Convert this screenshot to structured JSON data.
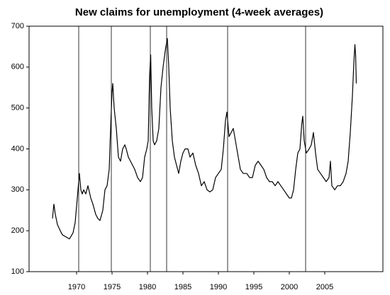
{
  "chart_data": {
    "type": "line",
    "title": "New claims for unemployment (4-week averages)",
    "x": [
      1966.6,
      1966.8,
      1967.0,
      1967.3,
      1967.7,
      1968.0,
      1968.5,
      1969.0,
      1969.5,
      1969.8,
      1970.0,
      1970.2,
      1970.4,
      1970.6,
      1970.8,
      1971.0,
      1971.3,
      1971.6,
      1972.0,
      1972.3,
      1972.7,
      1973.0,
      1973.3,
      1973.7,
      1974.0,
      1974.3,
      1974.6,
      1974.8,
      1975.0,
      1975.1,
      1975.3,
      1975.6,
      1975.9,
      1976.2,
      1976.5,
      1976.8,
      1977.0,
      1977.3,
      1977.6,
      1977.9,
      1978.2,
      1978.6,
      1979.0,
      1979.3,
      1979.6,
      1979.9,
      1980.1,
      1980.3,
      1980.45,
      1980.6,
      1980.8,
      1981.0,
      1981.3,
      1981.6,
      1981.9,
      1982.2,
      1982.5,
      1982.8,
      1983.0,
      1983.2,
      1983.5,
      1983.8,
      1984.1,
      1984.4,
      1984.7,
      1985.0,
      1985.3,
      1985.7,
      1986.0,
      1986.4,
      1986.8,
      1987.2,
      1987.6,
      1988.0,
      1988.4,
      1988.8,
      1989.2,
      1989.6,
      1990.0,
      1990.4,
      1990.7,
      1991.0,
      1991.2,
      1991.5,
      1991.8,
      1992.1,
      1992.4,
      1992.8,
      1993.1,
      1993.5,
      1994.0,
      1994.4,
      1994.8,
      1995.2,
      1995.6,
      1996.0,
      1996.4,
      1996.8,
      1997.2,
      1997.6,
      1998.0,
      1998.4,
      1998.8,
      1999.2,
      1999.6,
      2000.0,
      2000.3,
      2000.6,
      2000.9,
      2001.2,
      2001.5,
      2001.75,
      2001.9,
      2002.1,
      2002.4,
      2002.8,
      2003.1,
      2003.4,
      2003.7,
      2004.0,
      2004.4,
      2004.8,
      2005.2,
      2005.6,
      2005.8,
      2006.0,
      2006.4,
      2006.8,
      2007.2,
      2007.6,
      2008.0,
      2008.3,
      2008.6,
      2008.9,
      2009.1,
      2009.25,
      2009.35,
      2009.45
    ],
    "series": [
      {
        "color": "#000000",
        "values": [
          230,
          265,
          240,
          215,
          200,
          190,
          185,
          180,
          195,
          220,
          260,
          300,
          340,
          300,
          290,
          300,
          290,
          310,
          280,
          265,
          240,
          230,
          225,
          250,
          300,
          310,
          350,
          450,
          540,
          560,
          500,
          450,
          380,
          370,
          400,
          410,
          400,
          380,
          370,
          360,
          350,
          330,
          320,
          330,
          380,
          400,
          420,
          580,
          630,
          500,
          420,
          410,
          420,
          450,
          550,
          600,
          640,
          670,
          600,
          500,
          420,
          380,
          360,
          340,
          370,
          390,
          400,
          400,
          380,
          390,
          360,
          340,
          310,
          320,
          300,
          295,
          300,
          330,
          340,
          350,
          400,
          470,
          490,
          430,
          440,
          450,
          420,
          380,
          350,
          340,
          340,
          330,
          330,
          360,
          370,
          360,
          350,
          330,
          320,
          320,
          310,
          320,
          310,
          300,
          290,
          280,
          280,
          300,
          350,
          390,
          400,
          460,
          480,
          420,
          390,
          400,
          410,
          440,
          390,
          350,
          340,
          330,
          320,
          330,
          370,
          310,
          300,
          310,
          310,
          320,
          340,
          370,
          440,
          530,
          610,
          655,
          630,
          560
        ]
      }
    ],
    "vlines": [
      1970.3,
      1974.9,
      1980.4,
      1982.7,
      1991.3,
      2002.3
    ],
    "xlim": [
      1963.3,
      2013.2
    ],
    "ylim": [
      100,
      700
    ],
    "xticks": [
      1970,
      1975,
      1980,
      1985,
      1990,
      1995,
      2000,
      2005
    ],
    "yticks": [
      100,
      200,
      300,
      400,
      500,
      600,
      700
    ]
  }
}
